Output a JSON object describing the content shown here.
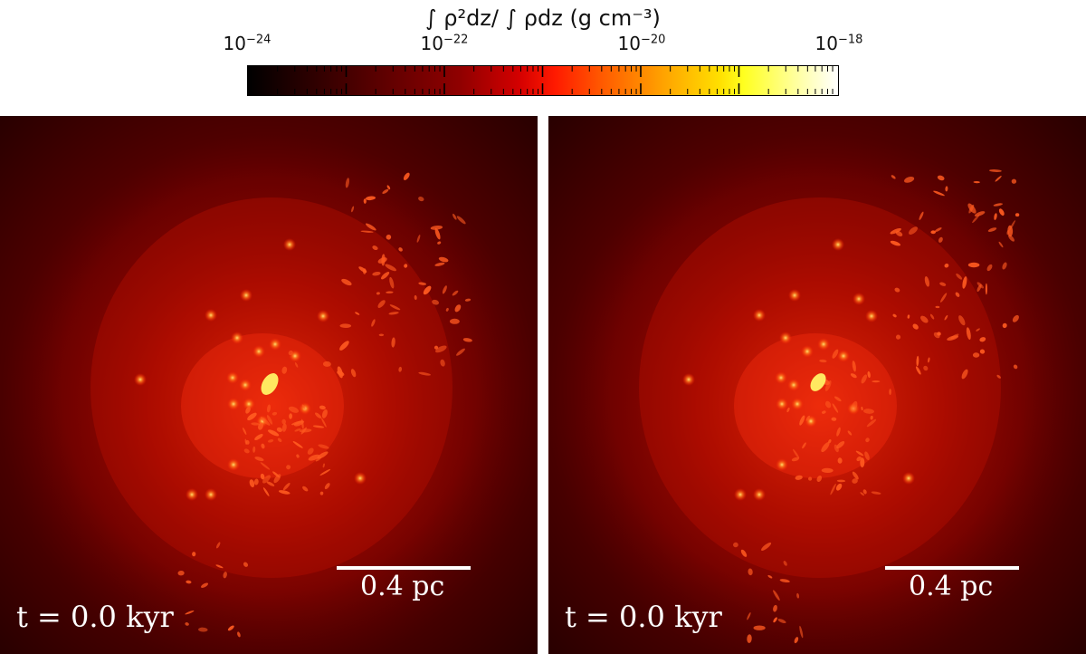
{
  "colorbar": {
    "title": "∫ ρ²dz/ ∫ ρdz (g cm⁻³)",
    "colormap": "hot",
    "scale": "log",
    "range": [
      1e-24,
      1e-18
    ],
    "tick_labels": [
      {
        "base": "10",
        "exp": "−24"
      },
      {
        "base": "10",
        "exp": "−22"
      },
      {
        "base": "10",
        "exp": "−20"
      },
      {
        "base": "10",
        "exp": "−18"
      }
    ]
  },
  "panels": [
    {
      "time_label": "t = 0.0 kyr",
      "scale_label": "0.4 pc"
    },
    {
      "time_label": "t = 0.0 kyr",
      "scale_label": "0.4 pc"
    }
  ],
  "colors": {
    "background": "#4a0000",
    "core": "#ff3a10",
    "star": "#ffd24a",
    "label": "#ffffff"
  }
}
